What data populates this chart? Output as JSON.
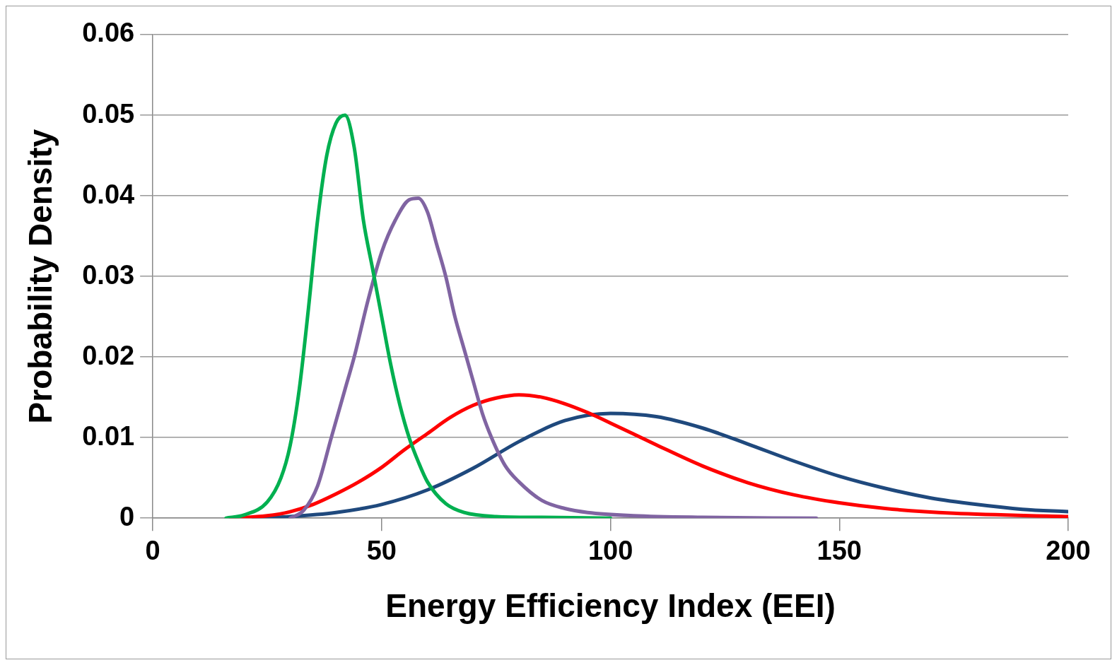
{
  "chart_data": {
    "type": "line",
    "xlabel": "Energy Efficiency Index (EEI)",
    "ylabel": "Probability Density",
    "xlim": [
      0,
      200
    ],
    "xticks": [
      0,
      50,
      100,
      150,
      200
    ],
    "ylim": [
      0,
      0.06
    ],
    "yticks": [
      0,
      0.01,
      0.02,
      0.03,
      0.04,
      0.05,
      0.06
    ],
    "grid": "y",
    "legend": false,
    "marker": "none",
    "line_style": "solid",
    "series": [
      {
        "color": "#00b050",
        "x": [
          16,
          20,
          25,
          28,
          30,
          32,
          34,
          36,
          38,
          40,
          42,
          44,
          46,
          48,
          50,
          52,
          54,
          56,
          58,
          60,
          64,
          68,
          75,
          85,
          100
        ],
        "values": [
          0,
          0.0004,
          0.002,
          0.005,
          0.009,
          0.016,
          0.026,
          0.037,
          0.045,
          0.049,
          0.05,
          0.046,
          0.037,
          0.031,
          0.025,
          0.019,
          0.014,
          0.01,
          0.007,
          0.0045,
          0.0018,
          0.0007,
          0.0002,
          0.0001,
          0
        ]
      },
      {
        "color": "#8064a2",
        "x": [
          30,
          33,
          36,
          39,
          42,
          44,
          47,
          50,
          53,
          56,
          58,
          60,
          62,
          64,
          66,
          68,
          70,
          72,
          74,
          77,
          80,
          85,
          90,
          95,
          105,
          120,
          145
        ],
        "values": [
          0,
          0.001,
          0.004,
          0.01,
          0.016,
          0.02,
          0.027,
          0.033,
          0.037,
          0.0395,
          0.0397,
          0.038,
          0.034,
          0.03,
          0.025,
          0.021,
          0.017,
          0.013,
          0.01,
          0.0065,
          0.0045,
          0.0022,
          0.0012,
          0.0007,
          0.0003,
          0.0001,
          0
        ]
      },
      {
        "color": "#ff0000",
        "x": [
          17,
          25,
          30,
          35,
          40,
          45,
          50,
          55,
          60,
          65,
          70,
          75,
          80,
          85,
          90,
          95,
          100,
          110,
          120,
          130,
          140,
          150,
          160,
          175,
          200
        ],
        "values": [
          0,
          0.0003,
          0.0008,
          0.0017,
          0.003,
          0.0045,
          0.0063,
          0.0085,
          0.0105,
          0.0125,
          0.014,
          0.0149,
          0.0153,
          0.015,
          0.0142,
          0.0131,
          0.0118,
          0.0091,
          0.0065,
          0.0044,
          0.0029,
          0.0019,
          0.0012,
          0.0006,
          0.0002
        ]
      },
      {
        "color": "#1f497d",
        "x": [
          22,
          30,
          40,
          50,
          60,
          70,
          80,
          90,
          100,
          110,
          120,
          130,
          140,
          150,
          160,
          170,
          180,
          190,
          200
        ],
        "values": [
          0,
          0.0002,
          0.0007,
          0.0017,
          0.0035,
          0.0062,
          0.0095,
          0.0121,
          0.013,
          0.0126,
          0.0112,
          0.0092,
          0.0071,
          0.0052,
          0.0037,
          0.0025,
          0.0017,
          0.0011,
          0.0008
        ]
      }
    ]
  }
}
